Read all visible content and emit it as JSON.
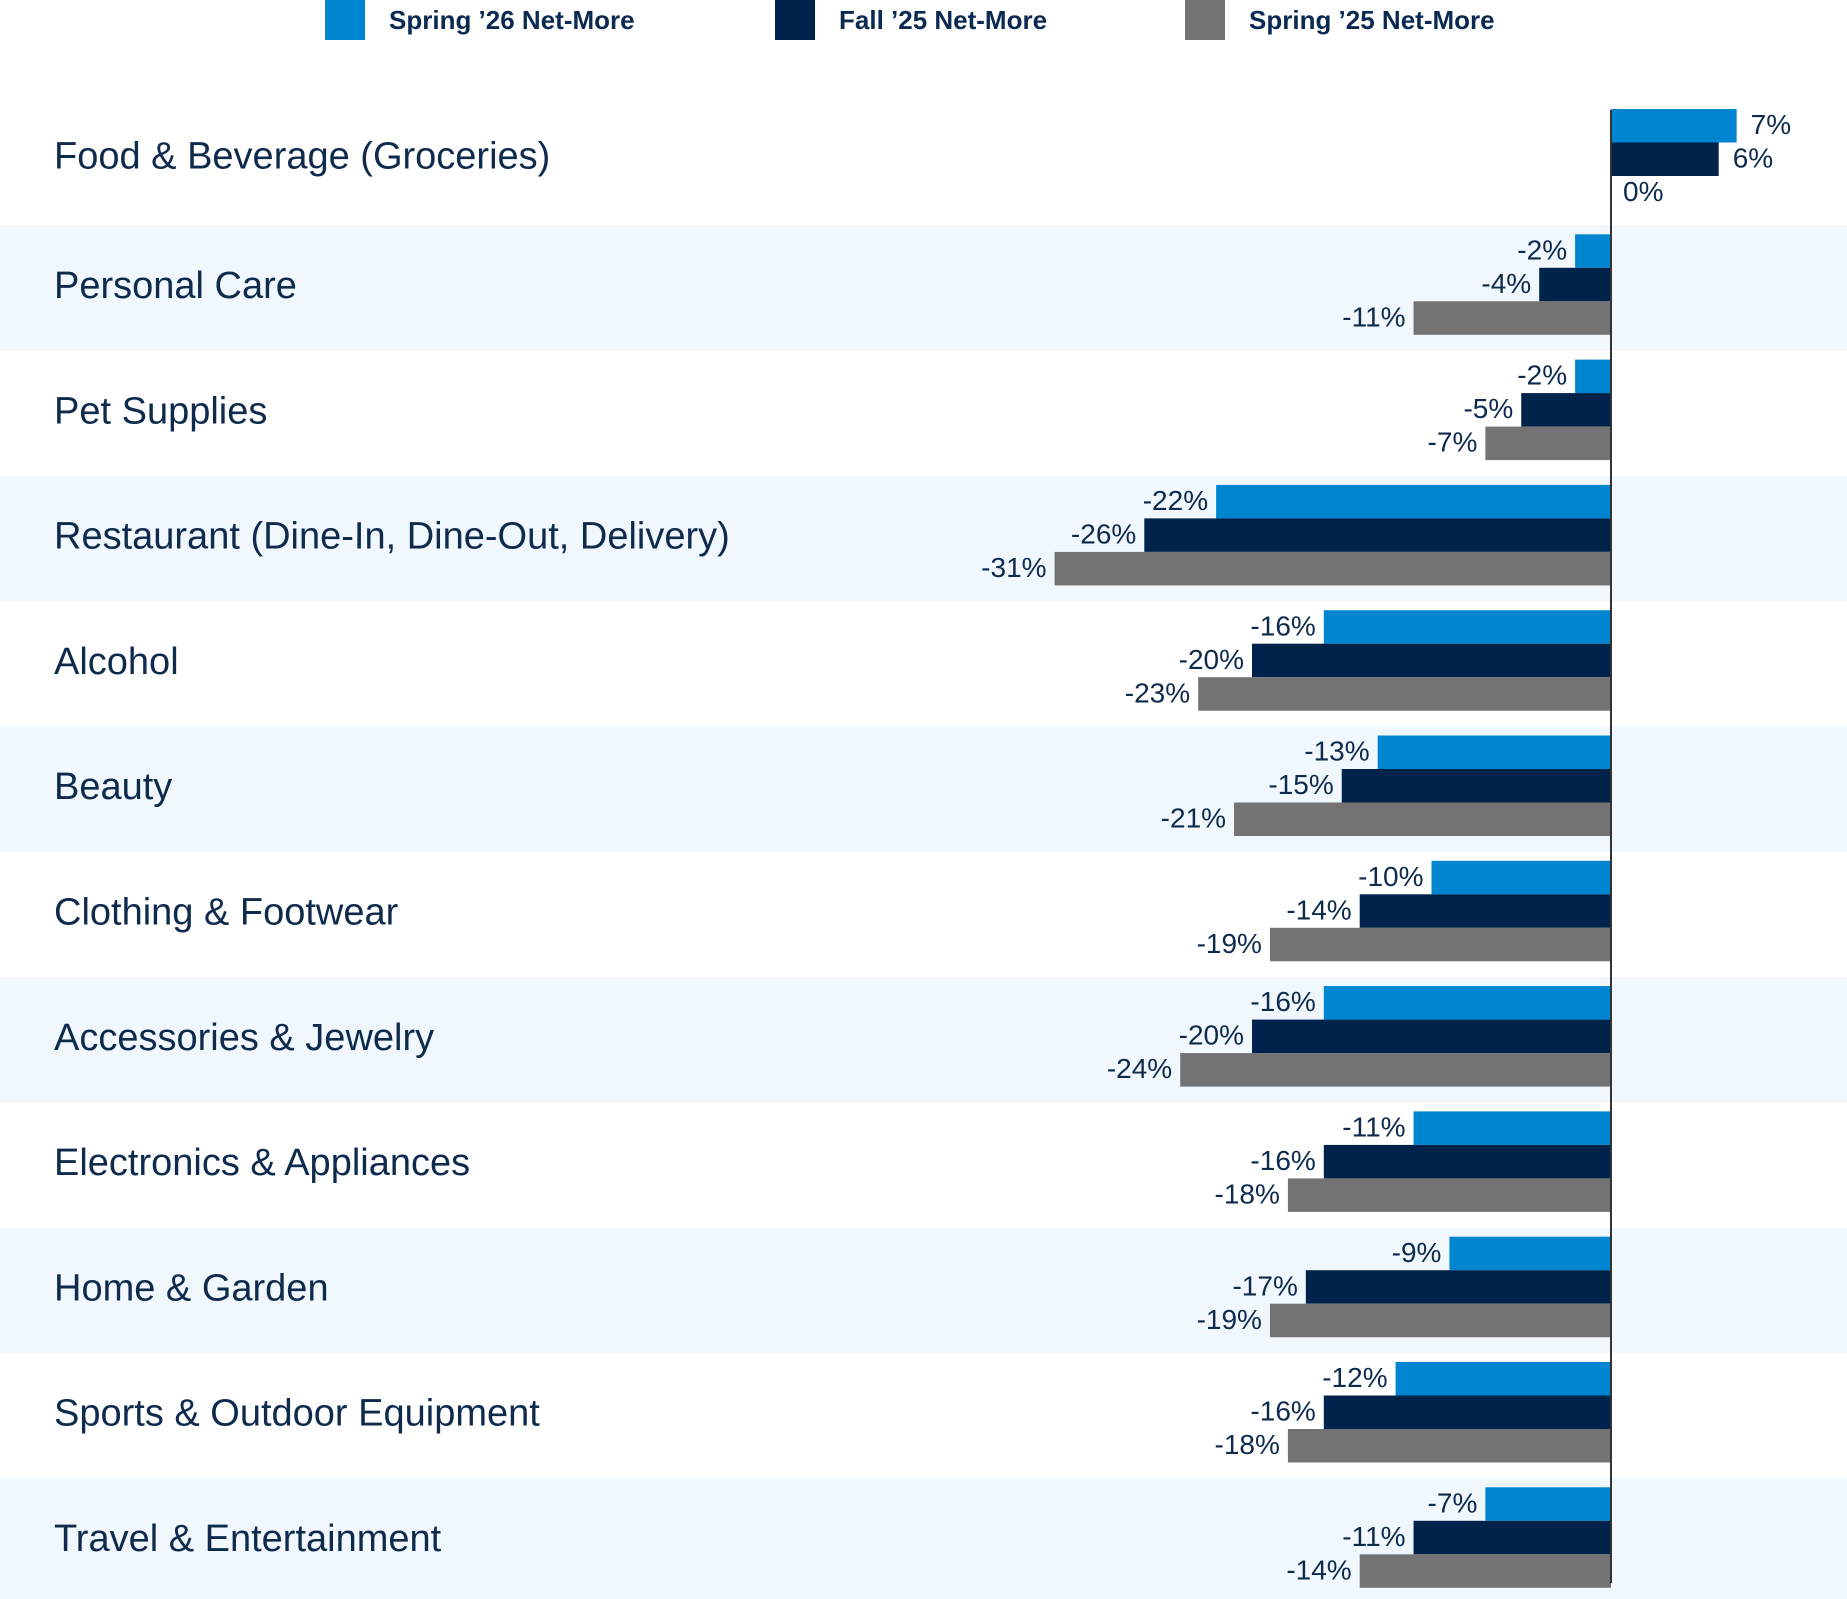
{
  "chart_data": {
    "type": "bar",
    "orientation": "horizontal",
    "title": "",
    "xlabel": "",
    "ylabel": "",
    "legend_position": "top",
    "grid": false,
    "xlim": [
      -31,
      7
    ],
    "categories": [
      "Food & Beverage (Groceries)",
      "Personal Care",
      "Pet Supplies",
      "Restaurant (Dine-In, Dine-Out, Delivery)",
      "Alcohol",
      "Beauty",
      "Clothing & Footwear",
      "Accessories & Jewelry",
      "Electronics & Appliances",
      "Home & Garden",
      "Sports & Outdoor Equipment",
      "Travel & Entertainment"
    ],
    "series": [
      {
        "name": "Spring ’26 Net-More",
        "color": "#0086d1",
        "values": [
          7,
          -2,
          -2,
          -22,
          -16,
          -13,
          -10,
          -16,
          -11,
          -9,
          -12,
          -7
        ]
      },
      {
        "name": "Fall ’25 Net-More",
        "color": "#00234b",
        "values": [
          6,
          -4,
          -5,
          -26,
          -20,
          -15,
          -14,
          -20,
          -16,
          -17,
          -16,
          -11
        ]
      },
      {
        "name": "Spring ’25 Net-More",
        "color": "#737373",
        "values": [
          0,
          -11,
          -7,
          -31,
          -23,
          -21,
          -19,
          -24,
          -18,
          -19,
          -18,
          -14
        ]
      }
    ],
    "value_suffix": "%"
  },
  "colors": {
    "band": "#f0f7fd",
    "axis": "#333333",
    "text": "#0e2a4d"
  }
}
